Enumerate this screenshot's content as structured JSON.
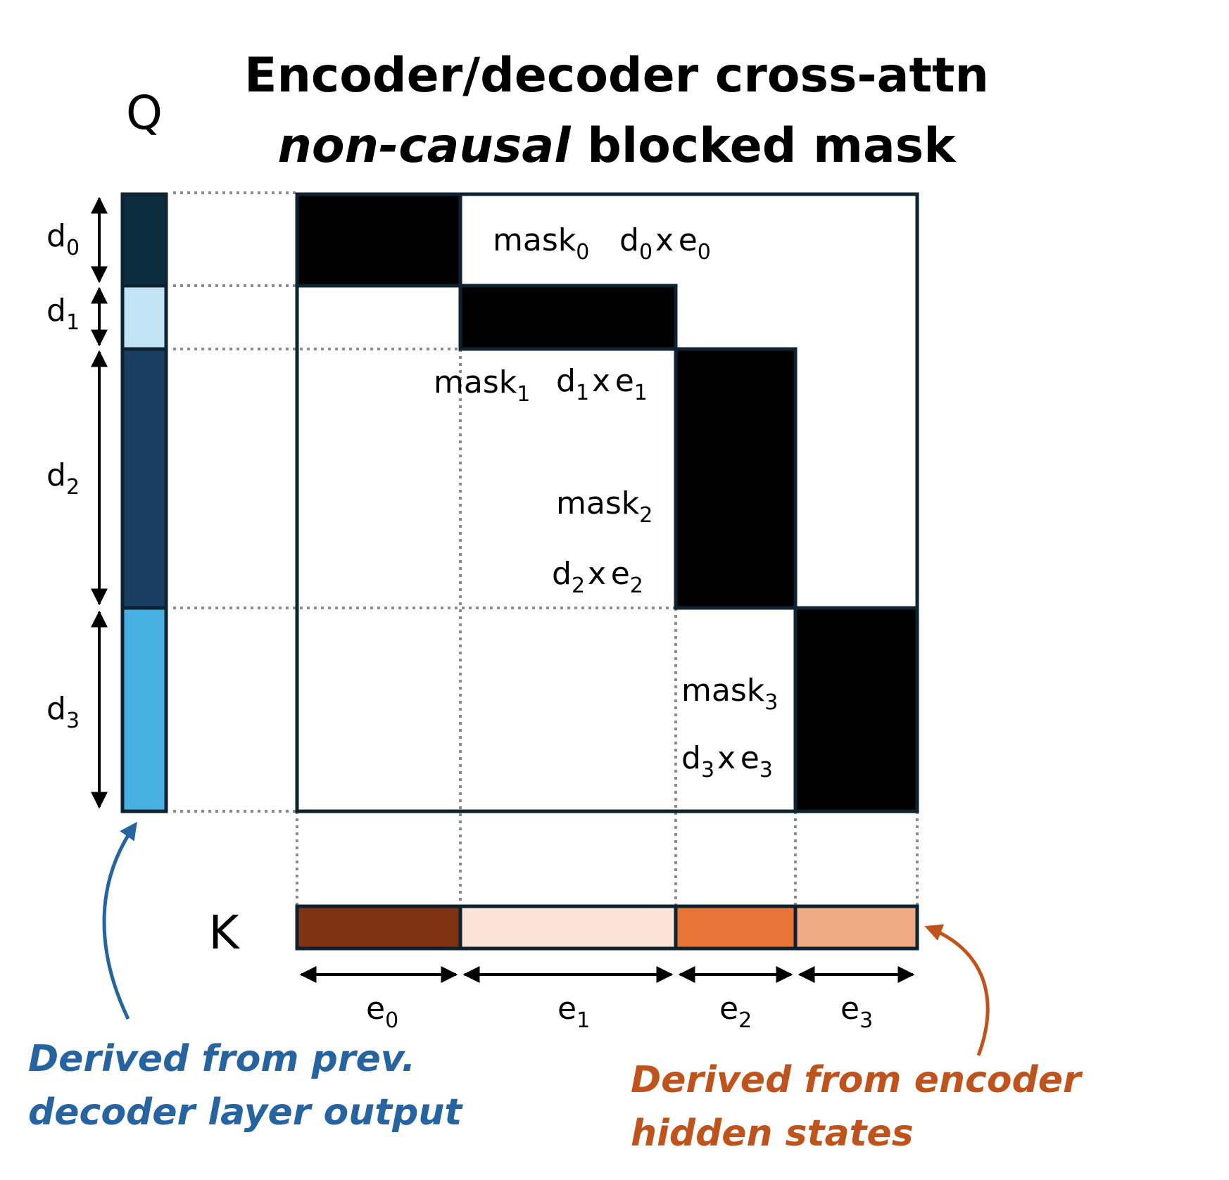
{
  "title": {
    "line1": "Encoder/decoder cross-attn",
    "line2_italic": "non-causal",
    "line2_rest": " blocked mask"
  },
  "q_label": "Q",
  "k_label": "K",
  "q_segments": [
    {
      "base": "d",
      "sub": "0",
      "color": "#0b2d3d"
    },
    {
      "base": "d",
      "sub": "1",
      "color": "#c2e3f4"
    },
    {
      "base": "d",
      "sub": "2",
      "color": "#1a3d62"
    },
    {
      "base": "d",
      "sub": "3",
      "color": "#47b1e3"
    }
  ],
  "k_segments": [
    {
      "base": "e",
      "sub": "0",
      "color": "#803312"
    },
    {
      "base": "e",
      "sub": "1",
      "color": "#fbe3d8"
    },
    {
      "base": "e",
      "sub": "2",
      "color": "#e87435"
    },
    {
      "base": "e",
      "sub": "3",
      "color": "#f0aa84"
    }
  ],
  "masks": [
    {
      "name": "mask",
      "sub": "0",
      "dim": {
        "d": "d",
        "dsub": "0",
        "x": "x",
        "e": "e",
        "esub": "0"
      }
    },
    {
      "name": "mask",
      "sub": "1",
      "dim": {
        "d": "d",
        "dsub": "1",
        "x": "x",
        "e": "e",
        "esub": "1"
      }
    },
    {
      "name": "mask",
      "sub": "2",
      "dim": {
        "d": "d",
        "dsub": "2",
        "x": "x",
        "e": "e",
        "esub": "2"
      }
    },
    {
      "name": "mask",
      "sub": "3",
      "dim": {
        "d": "d",
        "dsub": "3",
        "x": "x",
        "e": "e",
        "esub": "3"
      }
    }
  ],
  "notes": {
    "q_line1": "Derived from prev.",
    "q_line2": "decoder layer output",
    "k_line1": "Derived from encoder",
    "k_line2": "hidden states"
  },
  "colors": {
    "q_note": "#2563a1",
    "k_note": "#c0531c",
    "block": "#000000",
    "frame": "#0e2230"
  }
}
